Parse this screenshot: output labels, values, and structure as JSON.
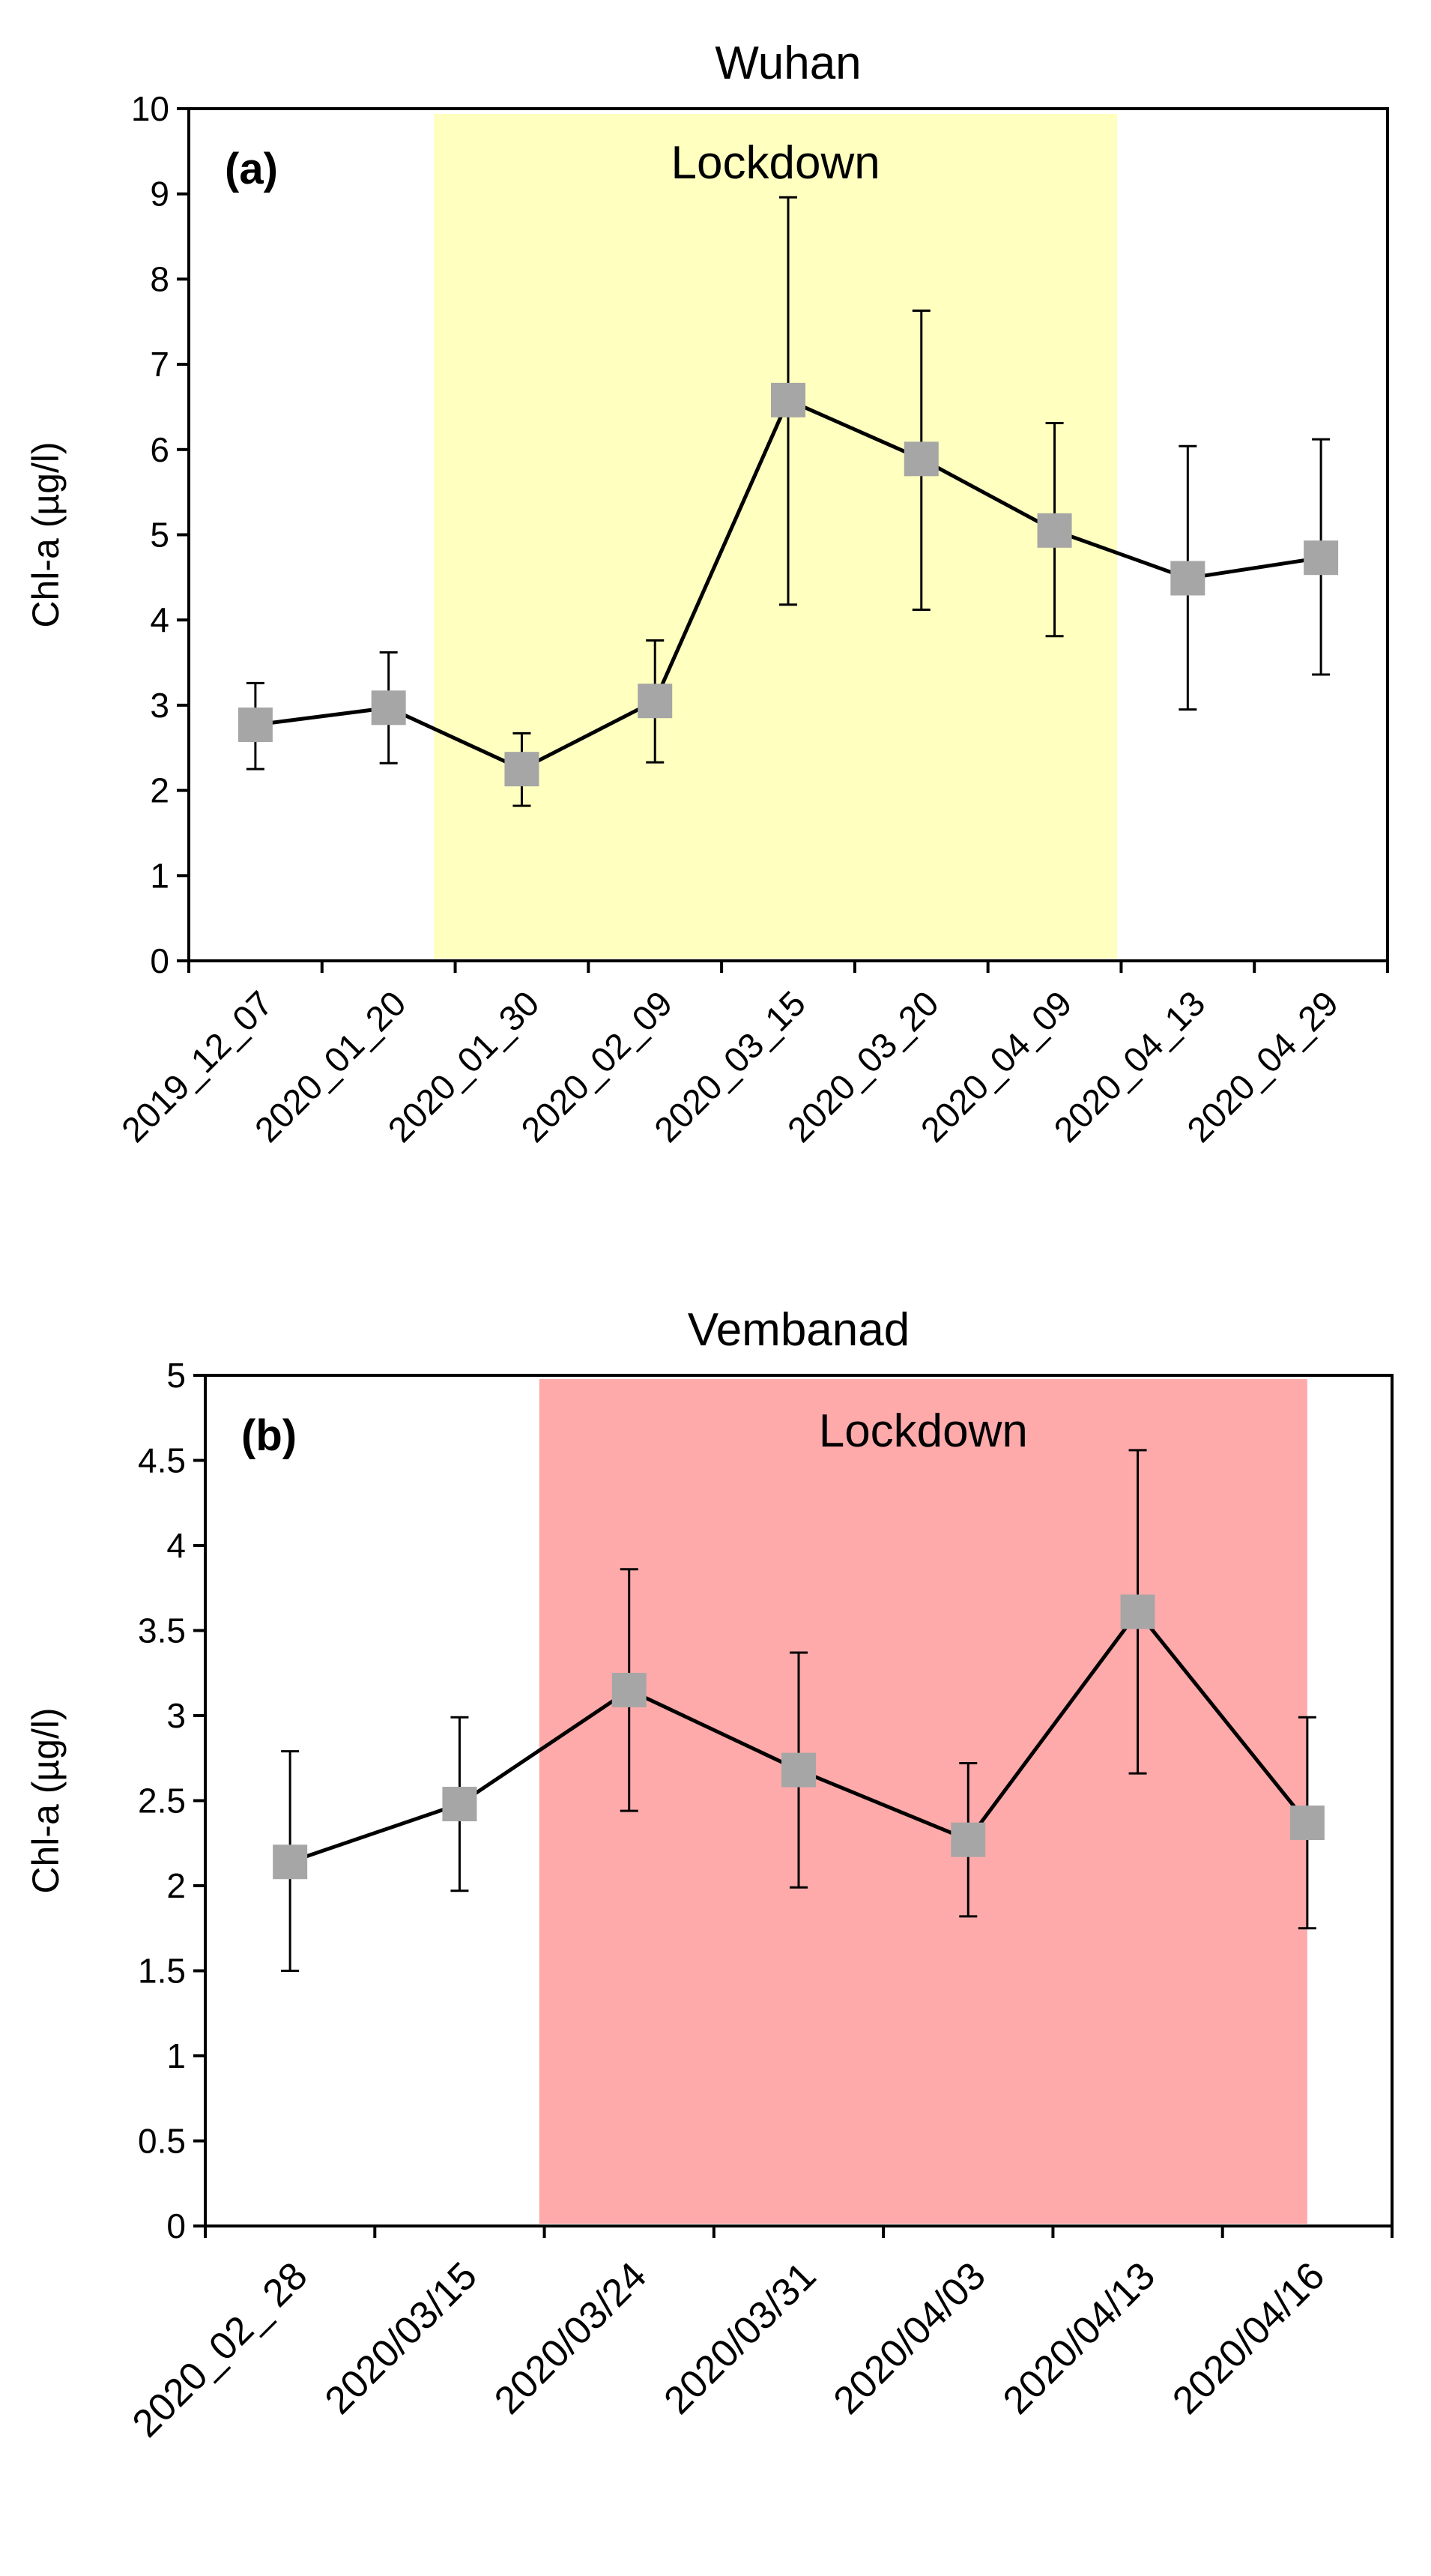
{
  "chart_data": [
    {
      "type": "line",
      "panel_label": "(a)",
      "title": "Wuhan",
      "xlabel": "",
      "ylabel": "Chl-a (µg/l)",
      "ylim": [
        0,
        10
      ],
      "yticks": [
        0,
        1,
        2,
        3,
        4,
        5,
        6,
        7,
        8,
        9,
        10
      ],
      "ytick_labels": [
        "0",
        "1",
        "2",
        "3",
        "4",
        "5",
        "6",
        "7",
        "8",
        "9",
        "10"
      ],
      "categories": [
        "2019_12_07",
        "2020_01_20",
        "2020_01_30",
        "2020_02_09",
        "2020_03_15",
        "2020_03_20",
        "2020_04_09",
        "2020_04_13",
        "2020_04_29"
      ],
      "values": [
        2.77,
        2.97,
        2.25,
        3.05,
        6.58,
        5.89,
        5.05,
        4.49,
        4.73
      ],
      "err_low": [
        2.25,
        2.32,
        1.82,
        2.33,
        4.18,
        4.12,
        3.81,
        2.95,
        3.36
      ],
      "err_high": [
        3.26,
        3.62,
        2.67,
        3.76,
        8.96,
        7.63,
        6.31,
        6.04,
        6.12
      ],
      "shade": {
        "label": "Lockdown",
        "from_index": 1.84,
        "to_index": 6.97,
        "color": "#ffffc0"
      },
      "grid": false,
      "marker_color": "#a6a6a6",
      "line_color": "#000000"
    },
    {
      "type": "line",
      "panel_label": "(b)",
      "title": "Vembanad",
      "xlabel": "",
      "ylabel": "Chl-a (µg/l)",
      "ylim": [
        0,
        5
      ],
      "yticks": [
        0,
        0.5,
        1,
        1.5,
        2,
        2.5,
        3,
        3.5,
        4,
        4.5,
        5
      ],
      "ytick_labels": [
        "0",
        "0.5",
        "1",
        "1.5",
        "2",
        "2.5",
        "3",
        "3.5",
        "4",
        "4.5",
        "5"
      ],
      "categories": [
        "2020_02_ 28",
        "2020/03/15",
        "2020/03/24",
        "2020/03/31",
        "2020/04/03",
        "2020/04/13",
        "2020/04/16"
      ],
      "values": [
        2.14,
        2.48,
        3.15,
        2.68,
        2.27,
        3.61,
        2.37
      ],
      "err_low": [
        1.5,
        1.97,
        2.44,
        1.99,
        1.82,
        2.66,
        1.75
      ],
      "err_high": [
        2.79,
        2.99,
        3.86,
        3.37,
        2.72,
        4.56,
        2.99
      ],
      "shade": {
        "label": "Lockdown",
        "from_index": 1.97,
        "to_index": 6.5,
        "color": "#ffaaaa"
      },
      "grid": false,
      "marker_color": "#a6a6a6",
      "line_color": "#000000"
    }
  ]
}
